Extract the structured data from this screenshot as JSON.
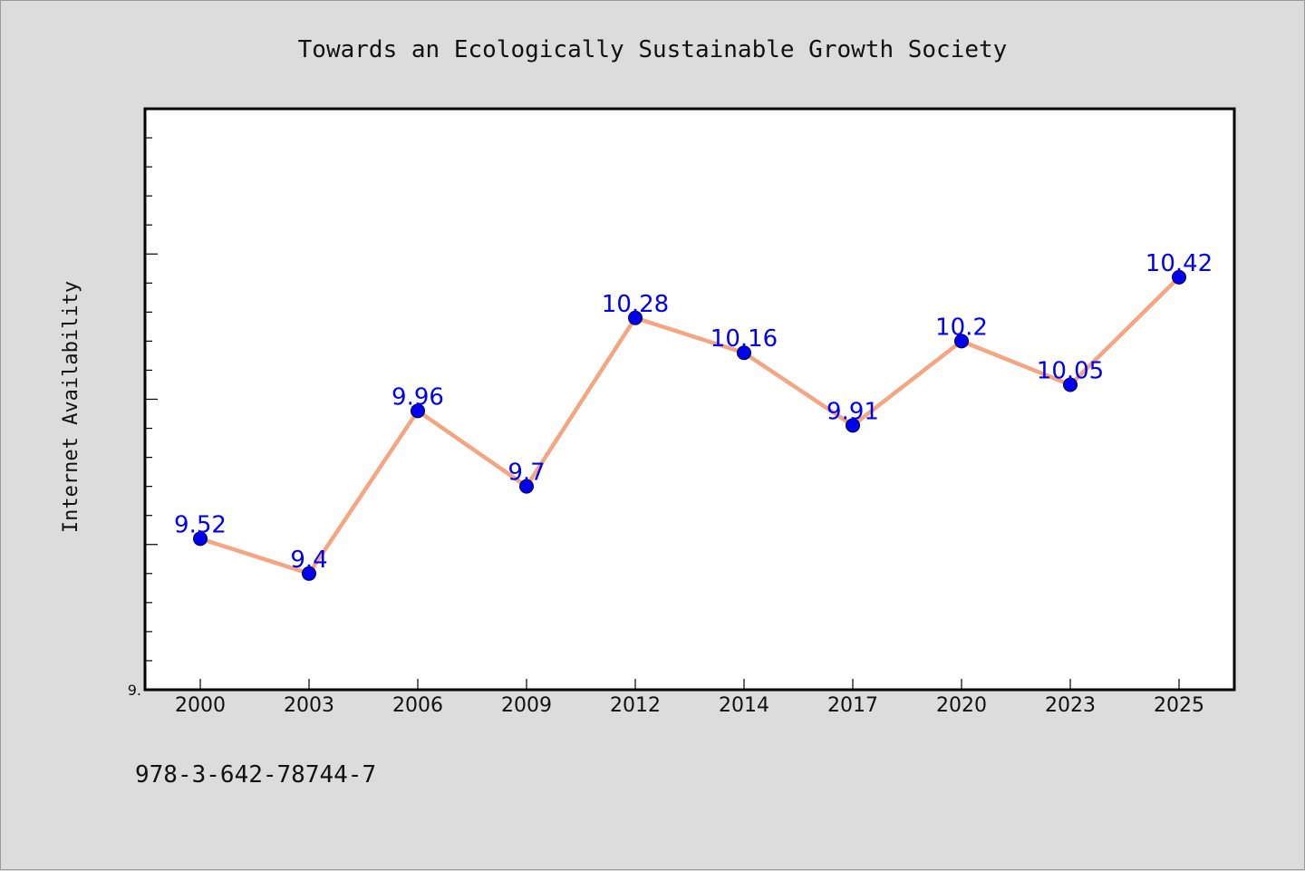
{
  "chart_data": {
    "type": "line",
    "title": "Towards an Ecologically Sustainable Growth Society",
    "ylabel": "Internet Availability",
    "xlabel": "",
    "categories": [
      "2000",
      "2003",
      "2006",
      "2009",
      "2012",
      "2014",
      "2017",
      "2020",
      "2023",
      "2025"
    ],
    "series": [
      {
        "values": [
          9.52,
          9.4,
          9.96,
          9.7,
          10.28,
          10.16,
          9.91,
          10.2,
          10.05,
          10.42
        ],
        "data_labels": [
          "9.52",
          "9.4",
          "9.96",
          "9.7",
          "10.28",
          "10.16",
          "9.91",
          "10.2",
          "10.05",
          "10.42"
        ],
        "line_color": "#f4a582",
        "marker_color": "#0000ee",
        "label_color": "#0000ee"
      }
    ],
    "ylim": [
      9.0,
      11.0
    ],
    "y_tick_labels": [
      "9."
    ],
    "grid": false
  },
  "footer": {
    "isbn": "978-3-642-78744-7"
  }
}
